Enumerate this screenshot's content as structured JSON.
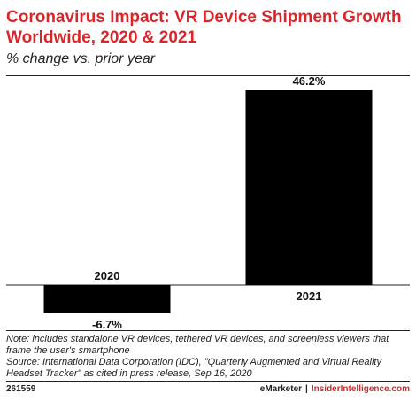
{
  "header": {
    "title": "Coronavirus Impact: VR Device Shipment Growth Worldwide, 2020 & 2021",
    "subtitle": "% change vs. prior year"
  },
  "chart_data": {
    "type": "bar",
    "title": "Coronavirus Impact: VR Device Shipment Growth Worldwide, 2020 & 2021",
    "subtitle": "% change vs. prior year",
    "categories": [
      "2020",
      "2021"
    ],
    "values": [
      -6.7,
      46.2
    ],
    "value_labels": [
      "-6.7%",
      "46.2%"
    ],
    "xlabel": "",
    "ylabel": "",
    "ylim": [
      -10,
      50
    ],
    "grid": false,
    "legend": "none",
    "bar_color": "#000000"
  },
  "notes": {
    "note": "Note: includes standalone VR devices, tethered VR devices, and screenless viewers that frame the user's smartphone",
    "source": "Source: International Data Corporation (IDC), \"Quarterly Augmented and Virtual Reality Headset Tracker\" as cited in press release, Sep 16, 2020"
  },
  "footer": {
    "id": "261559",
    "brand1": "eMarketer",
    "separator": "|",
    "brand2": "InsiderIntelligence.com"
  },
  "colors": {
    "accent": "#d9262b",
    "bar": "#000000"
  }
}
